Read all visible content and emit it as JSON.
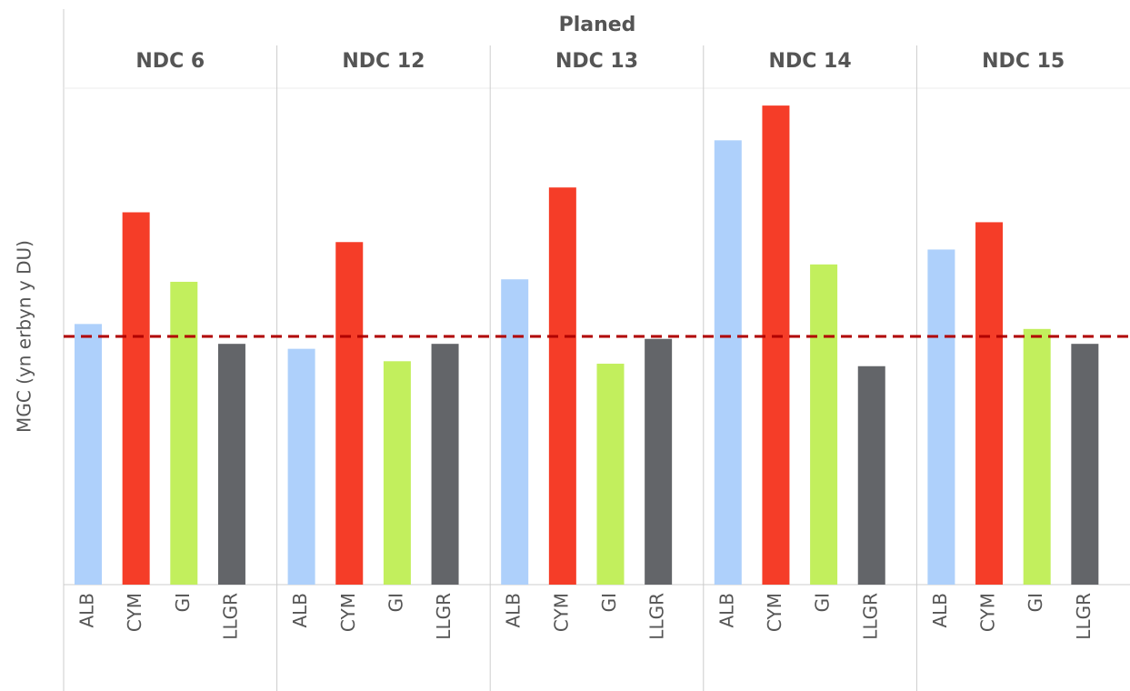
{
  "chart_data": {
    "type": "bar",
    "header": "Planed",
    "ylabel": "MGC (yn erbyn y DU)",
    "categories": [
      "ALB",
      "CYM",
      "GI",
      "LLGR"
    ],
    "colors": [
      "#aed0fb",
      "#f53d28",
      "#c2ef5d",
      "#636569"
    ],
    "panels": [
      {
        "name": "NDC 6",
        "values": [
          1.05,
          1.5,
          1.22,
          0.97
        ]
      },
      {
        "name": "NDC 12",
        "values": [
          0.95,
          1.38,
          0.9,
          0.97
        ]
      },
      {
        "name": "NDC 13",
        "values": [
          1.23,
          1.6,
          0.89,
          0.99
        ]
      },
      {
        "name": "NDC 14",
        "values": [
          1.79,
          1.93,
          1.29,
          0.88
        ]
      },
      {
        "name": "NDC 15",
        "values": [
          1.35,
          1.46,
          1.03,
          0.97
        ]
      }
    ],
    "ylim": [
      0,
      2
    ],
    "reference_line": {
      "value": 1,
      "color": "#b00000"
    }
  }
}
